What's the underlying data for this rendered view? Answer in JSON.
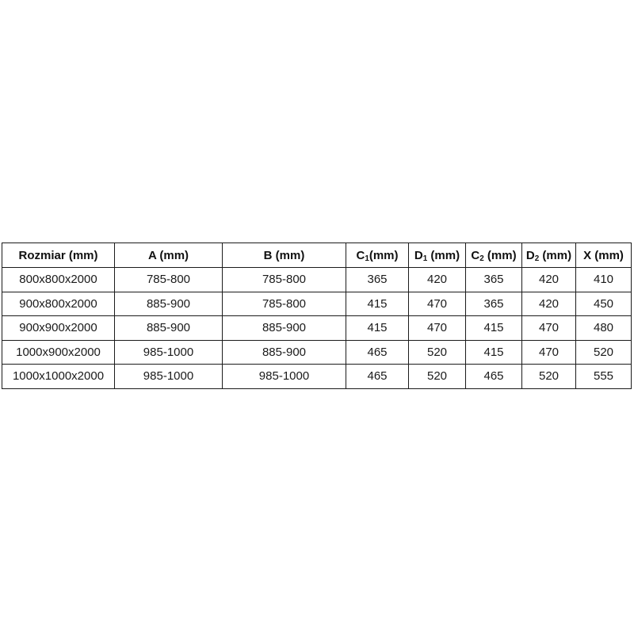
{
  "page": {
    "background_color": "#ffffff",
    "table_border_color": "#1b1b1b",
    "text_color": "#1a1a1a"
  },
  "chart_data": {
    "type": "table",
    "title": "",
    "columns": [
      "Rozmiar (mm)",
      "A (mm)",
      "B (mm)",
      "C₁(mm)",
      "D₁ (mm)",
      "C₂ (mm)",
      "D₂ (mm)",
      "X (mm)"
    ],
    "rows": [
      [
        "800x800x2000",
        "785-800",
        "785-800",
        "365",
        "420",
        "365",
        "420",
        "410"
      ],
      [
        "900x800x2000",
        "885-900",
        "785-800",
        "415",
        "470",
        "365",
        "420",
        "450"
      ],
      [
        "900x900x2000",
        "885-900",
        "885-900",
        "415",
        "470",
        "415",
        "470",
        "480"
      ],
      [
        "1000x900x2000",
        "985-1000",
        "885-900",
        "465",
        "520",
        "415",
        "470",
        "520"
      ],
      [
        "1000x1000x2000",
        "985-1000",
        "985-1000",
        "465",
        "520",
        "465",
        "520",
        "555"
      ]
    ],
    "layout": {
      "header_bold": true,
      "grid": "all-borders",
      "cell_alignment": "center"
    }
  },
  "header_parts": [
    {
      "pre": "Rozmiar (mm)",
      "sub": "",
      "post": ""
    },
    {
      "pre": "A (mm)",
      "sub": "",
      "post": ""
    },
    {
      "pre": "B (mm)",
      "sub": "",
      "post": ""
    },
    {
      "pre": "C",
      "sub": "1",
      "post": "(mm)"
    },
    {
      "pre": "D",
      "sub": "1",
      "post": " (mm)"
    },
    {
      "pre": "C",
      "sub": "2",
      "post": " (mm)"
    },
    {
      "pre": "D",
      "sub": "2",
      "post": " (mm)"
    },
    {
      "pre": "X (mm)",
      "sub": "",
      "post": ""
    }
  ]
}
